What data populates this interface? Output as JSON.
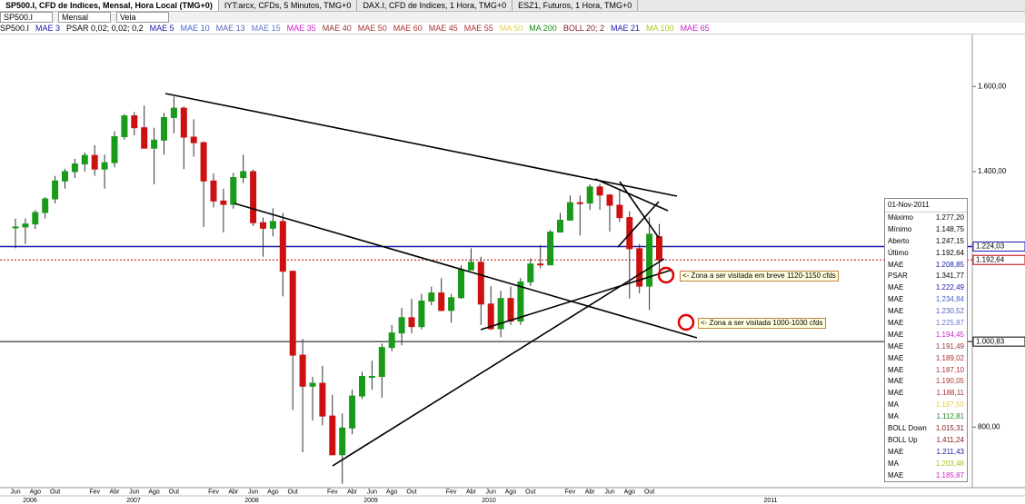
{
  "tabs": [
    "SP500.I, CFD de Indices, Mensal, Hora Local (TMG+0)",
    "IYT:arcx, CFDs, 5 Minutos, TMG+0",
    "DAX.I, CFD de Indices, 1 Hora, TMG+0",
    "ESZ1, Futuros, 1 Hora, TMG+0"
  ],
  "toolbar": {
    "symbol": "SP500.I",
    "period": "Mensal",
    "style": "Vela"
  },
  "legend": [
    {
      "name": "SP500.I",
      "color": "#000000"
    },
    {
      "name": "MAE 3",
      "color": "#1a1aa8"
    },
    {
      "name": "PSAR 0,02; 0,02; 0,2",
      "color": "#000000"
    },
    {
      "name": "MAE 5",
      "color": "#1a1aa8"
    },
    {
      "name": "MAE 10",
      "color": "#4466cc"
    },
    {
      "name": "MAE 13",
      "color": "#5566bb"
    },
    {
      "name": "MAE 15",
      "color": "#6677cc"
    },
    {
      "name": "MAE 35",
      "color": "#cc22cc"
    },
    {
      "name": "MAE 40",
      "color": "#993333"
    },
    {
      "name": "MAE 50",
      "color": "#aa3333"
    },
    {
      "name": "MAE 60",
      "color": "#aa3333"
    },
    {
      "name": "MAE 45",
      "color": "#aa3333"
    },
    {
      "name": "MAE 55",
      "color": "#aa3333"
    },
    {
      "name": "MA 50",
      "color": "#e0d040"
    },
    {
      "name": "MA 200",
      "color": "#1a8a1a"
    },
    {
      "name": "BOLL 20; 2",
      "color": "#802020"
    },
    {
      "name": "MAE 21",
      "color": "#1a1aa8"
    },
    {
      "name": "MA 100",
      "color": "#b0c020"
    },
    {
      "name": "MAE 65",
      "color": "#cc22cc"
    }
  ],
  "chart_data": {
    "type": "candlestick",
    "categories": [
      "Jun",
      null,
      "Ago",
      null,
      "Out",
      null,
      null,
      null,
      "Fev",
      null,
      "Abr",
      null,
      "Jun",
      null,
      "Ago",
      null,
      "Out",
      null,
      null,
      null,
      "Fev",
      null,
      "Abr",
      null,
      "Jun",
      null,
      "Ago",
      null,
      "Out",
      null,
      null,
      null,
      "Fev",
      null,
      "Abr",
      null,
      "Jun",
      null,
      "Ago",
      null,
      "Out",
      null,
      null,
      null,
      "Fev",
      null,
      "Abr",
      null,
      "Jun",
      null,
      "Ago",
      null,
      "Out",
      null,
      null,
      null,
      "Fev",
      null,
      "Abr",
      null,
      "Jun",
      null,
      "Ago",
      null,
      "Out",
      null
    ],
    "years": [
      "2006",
      "2007",
      "2008",
      "2009",
      "2010",
      "2011"
    ],
    "open": [
      1270,
      1270,
      1277,
      1304,
      1336,
      1378,
      1400,
      1418,
      1438,
      1406,
      1421,
      1482,
      1531,
      1503,
      1455,
      1474,
      1527,
      1549,
      1481,
      1468,
      1378,
      1331,
      1323,
      1386,
      1400,
      1280,
      1267,
      1283,
      1166,
      969,
      896,
      903,
      826,
      735,
      798,
      873,
      919,
      919,
      987,
      1021,
      1057,
      1036,
      1096,
      1115,
      1074,
      1104,
      1169,
      1187,
      1089,
      1031,
      1102,
      1049,
      1141,
      1183,
      1181,
      1258,
      1286,
      1327,
      1326,
      1364,
      1345,
      1321,
      1292,
      1219,
      1131,
      1247.15
    ],
    "high": [
      1290,
      1290,
      1310,
      1340,
      1390,
      1407,
      1430,
      1445,
      1462,
      1440,
      1495,
      1535,
      1540,
      1555,
      1503,
      1538,
      1576,
      1553,
      1523,
      1471,
      1396,
      1360,
      1397,
      1440,
      1405,
      1292,
      1314,
      1303,
      1167,
      1007,
      918,
      944,
      876,
      832,
      888,
      930,
      956,
      996,
      1040,
      1080,
      1101,
      1113,
      1130,
      1150,
      1113,
      1180,
      1220,
      1200,
      1131,
      1120,
      1130,
      1150,
      1196,
      1228,
      1263,
      1303,
      1344,
      1344,
      1370,
      1371,
      1348,
      1357,
      1307,
      1230,
      1293,
      1277.2
    ],
    "low": [
      1220,
      1230,
      1265,
      1290,
      1325,
      1360,
      1385,
      1400,
      1390,
      1360,
      1410,
      1475,
      1485,
      1455,
      1370,
      1440,
      1490,
      1406,
      1435,
      1270,
      1316,
      1257,
      1313,
      1373,
      1272,
      1200,
      1248,
      1107,
      840,
      741,
      815,
      804,
      735,
      667,
      783,
      866,
      888,
      869,
      978,
      992,
      1020,
      1030,
      1086,
      1072,
      1045,
      1101,
      1170,
      1040,
      1028,
      1011,
      1040,
      1040,
      1131,
      1173,
      1180,
      1257,
      1290,
      1250,
      1310,
      1310,
      1259,
      1282,
      1102,
      1114,
      1075,
      1148.75
    ],
    "close": [
      1270,
      1277,
      1304,
      1336,
      1378,
      1400,
      1418,
      1438,
      1406,
      1421,
      1482,
      1531,
      1503,
      1455,
      1474,
      1527,
      1549,
      1481,
      1468,
      1378,
      1331,
      1323,
      1386,
      1400,
      1280,
      1267,
      1283,
      1166,
      969,
      896,
      903,
      826,
      735,
      798,
      873,
      919,
      919,
      987,
      1021,
      1057,
      1036,
      1096,
      1115,
      1074,
      1104,
      1169,
      1187,
      1089,
      1031,
      1102,
      1049,
      1141,
      1183,
      1181,
      1258,
      1286,
      1327,
      1326,
      1364,
      1345,
      1321,
      1292,
      1219,
      1131,
      1253,
      1192.64
    ],
    "up_color": "#1a9a1a",
    "down_color": "#cc1111",
    "ylim": [
      657.8,
      1722
    ],
    "yticks": [
      {
        "value": 1600,
        "label": "1.600,00"
      },
      {
        "value": 1400,
        "label": "1.400,00"
      },
      {
        "value": 800,
        "label": "800,00"
      }
    ],
    "price_lines": [
      {
        "value": 1224.03,
        "label": "1.224,03",
        "color": "#1a1aa8"
      },
      {
        "value": 1192.64,
        "label": "1.192,64",
        "color": "#c00000"
      },
      {
        "value": 1000.83,
        "label": "1.000,83",
        "color": "#000000"
      }
    ],
    "annotations": [
      "<- Zona a ser visitada em breve 1120-1150 cfds",
      "<- Zona a ser visitada 1000-1030 cfds"
    ]
  },
  "panel": {
    "date": "01-Nov-2011",
    "rows": [
      {
        "label": "Máximo",
        "value": "1.277,20",
        "color": "#000000"
      },
      {
        "label": "Mínimo",
        "value": "1.148,75",
        "color": "#000000"
      },
      {
        "label": "Aberto",
        "value": "1.247,15",
        "color": "#000000"
      },
      {
        "label": "Último",
        "value": "1.192,64",
        "color": "#000000"
      },
      {
        "label": "MAE",
        "value": "1.208,85",
        "color": "#1a1aa8"
      },
      {
        "label": "PSAR",
        "value": "1.341,77",
        "color": "#000000"
      },
      {
        "label": "MAE",
        "value": "1.222,49",
        "color": "#1a1aa8"
      },
      {
        "label": "MAE",
        "value": "1.234,84",
        "color": "#4466cc"
      },
      {
        "label": "MAE",
        "value": "1.230,52",
        "color": "#5566bb"
      },
      {
        "label": "MAE",
        "value": "1.225,87",
        "color": "#6677cc"
      },
      {
        "label": "MAE",
        "value": "1.194,45",
        "color": "#cc22cc"
      },
      {
        "label": "MAE",
        "value": "1.191,49",
        "color": "#993333"
      },
      {
        "label": "MAE",
        "value": "1.189,02",
        "color": "#aa3333"
      },
      {
        "label": "MAE",
        "value": "1.187,10",
        "color": "#aa3333"
      },
      {
        "label": "MAE",
        "value": "1.190,05",
        "color": "#aa3333"
      },
      {
        "label": "MAE",
        "value": "1.188,11",
        "color": "#aa3333"
      },
      {
        "label": "MA",
        "value": "1.197,50",
        "color": "#e0d040"
      },
      {
        "label": "MA",
        "value": "1.112,81",
        "color": "#1a8a1a"
      },
      {
        "label": "BOLL Down",
        "value": "1.015,31",
        "color": "#802020"
      },
      {
        "label": "BOLL Up",
        "value": "1.411,24",
        "color": "#802020"
      },
      {
        "label": "MAE",
        "value": "1.211,43",
        "color": "#1a1aa8"
      },
      {
        "label": "MA",
        "value": "1.203,48",
        "color": "#b0c020"
      },
      {
        "label": "MAE",
        "value": "1.185,87",
        "color": "#cc22cc"
      }
    ]
  }
}
